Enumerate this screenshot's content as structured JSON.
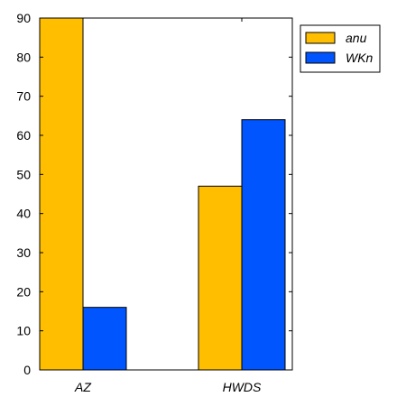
{
  "chart_data": {
    "type": "bar",
    "categories": [
      "AZ",
      "HWDS"
    ],
    "series": [
      {
        "name": "anu",
        "values": [
          90,
          47
        ],
        "color": "#FFBF00"
      },
      {
        "name": "WKn",
        "values": [
          16,
          64
        ],
        "color": "#0055FF"
      }
    ],
    "ylim": [
      0,
      90
    ],
    "yticks": [
      0,
      10,
      20,
      30,
      40,
      50,
      60,
      70,
      80,
      90
    ],
    "grid": false,
    "legend_position": "top-right"
  }
}
